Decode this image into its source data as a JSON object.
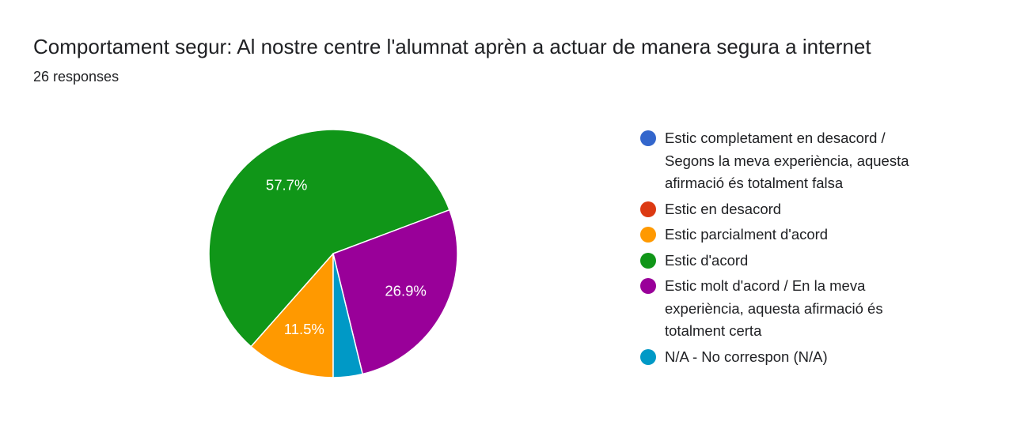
{
  "chart_data": {
    "type": "pie",
    "title": "Comportament segur: Al nostre centre l'alumnat aprèn a actuar de manera segura a internet",
    "subtitle": "26 responses",
    "categories": [
      "Estic completament en desacord / Segons la meva experiència, aquesta afirmació és totalment falsa",
      "Estic en desacord",
      "Estic parcialment d'acord",
      "Estic d'acord",
      "Estic molt d'acord / En la meva experiència, aquesta afirmació és totalment certa",
      "N/A - No correspon (N/A)"
    ],
    "values": [
      0,
      0,
      11.5,
      57.7,
      26.9,
      3.8
    ],
    "value_labels": [
      null,
      null,
      "11.5%",
      "57.7%",
      "26.9%",
      null
    ],
    "colors": [
      "#3366cc",
      "#dc3912",
      "#ff9900",
      "#109618",
      "#990099",
      "#0099c6"
    ],
    "legend": "right"
  }
}
